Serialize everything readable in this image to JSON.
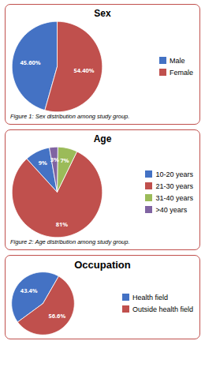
{
  "chart_data": [
    {
      "type": "pie",
      "title": "Sex",
      "categories": [
        "Male",
        "Female"
      ],
      "values": [
        45.6,
        54.4
      ],
      "value_labels": [
        "45.60%",
        "54.40%"
      ],
      "colors": [
        "#4472C4",
        "#C0504D"
      ],
      "data_labels": true,
      "legend": "right",
      "caption": "Figure 1: Sex distribution among study group."
    },
    {
      "type": "pie",
      "title": "Age",
      "categories": [
        "10-20 years",
        "21-30 years",
        "31-40 years",
        ">40 years"
      ],
      "values": [
        9,
        81,
        7,
        3
      ],
      "value_labels": [
        "9%",
        "81%",
        "7%",
        "3%"
      ],
      "colors": [
        "#4472C4",
        "#C0504D",
        "#9BBB59",
        "#8064A2"
      ],
      "data_labels": true,
      "legend": "right",
      "caption": "Figure 2: Age distribution among study group."
    },
    {
      "type": "pie",
      "title": "Occupation",
      "categories": [
        "Health field",
        "Outside health field"
      ],
      "values": [
        43.4,
        56.6
      ],
      "value_labels": [
        "43.4%",
        "56.6%"
      ],
      "colors": [
        "#4472C4",
        "#C0504D"
      ],
      "data_labels": true,
      "legend": "right"
    }
  ]
}
